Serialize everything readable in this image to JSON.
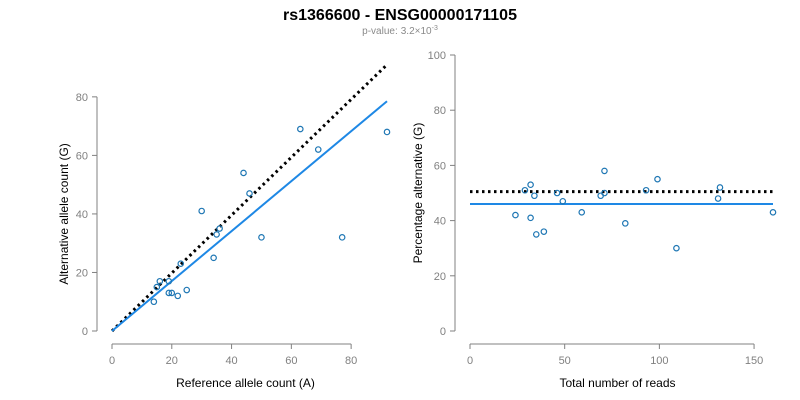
{
  "figure": {
    "title": "rs1366600 - ENSG00000171105",
    "pvalue_label": "p-value:",
    "pvalue_mantissa": "3.2",
    "pvalue_times": "×10",
    "pvalue_exponent": "-3"
  },
  "colors": {
    "points": "#1f77b4",
    "fit_line": "#1e88e5",
    "reference_line": "#000000",
    "axis": "#808080"
  },
  "chart_data": [
    {
      "type": "scatter",
      "xlabel": "Reference allele count (A)",
      "ylabel": "Alternative allele count (G)",
      "xlim": [
        0,
        92
      ],
      "ylim": [
        0,
        82
      ],
      "xticks": [
        0,
        20,
        40,
        60,
        80
      ],
      "yticks": [
        0,
        20,
        40,
        60,
        80
      ],
      "x": [
        14,
        15,
        16,
        19,
        19,
        20,
        22,
        23,
        25,
        30,
        34,
        35,
        36,
        44,
        46,
        50,
        63,
        69,
        77,
        92
      ],
      "y": [
        10,
        15,
        17,
        13,
        17,
        13,
        12,
        23,
        14,
        41,
        25,
        33,
        35,
        54,
        47,
        32,
        69,
        62,
        32,
        68
      ],
      "lines": [
        {
          "kind": "dotted",
          "x": [
            0,
            92
          ],
          "y": [
            0,
            91
          ]
        },
        {
          "kind": "solid",
          "x": [
            0,
            92
          ],
          "y": [
            0,
            78.5
          ]
        }
      ],
      "grid": false
    },
    {
      "type": "scatter",
      "xlabel": "Total number of reads",
      "ylabel": "Percentage alternative (G)",
      "xlim": [
        0,
        160
      ],
      "ylim": [
        0,
        100
      ],
      "xticks": [
        0,
        50,
        100,
        150
      ],
      "yticks": [
        0,
        20,
        40,
        60,
        80,
        100
      ],
      "x": [
        24,
        29,
        32,
        32,
        34,
        35,
        39,
        46,
        49,
        59,
        69,
        71,
        71,
        82,
        93,
        99,
        109,
        131,
        132,
        160
      ],
      "y": [
        42,
        51,
        53,
        41,
        49,
        35,
        36,
        50,
        47,
        43,
        49,
        50,
        58,
        39,
        51,
        55,
        30,
        48,
        52,
        43
      ],
      "lines": [
        {
          "kind": "dotted",
          "x": [
            0,
            160
          ],
          "y": [
            50.5,
            50.5
          ]
        },
        {
          "kind": "solid",
          "x": [
            0,
            160
          ],
          "y": [
            46,
            46
          ]
        }
      ],
      "grid": false
    }
  ]
}
